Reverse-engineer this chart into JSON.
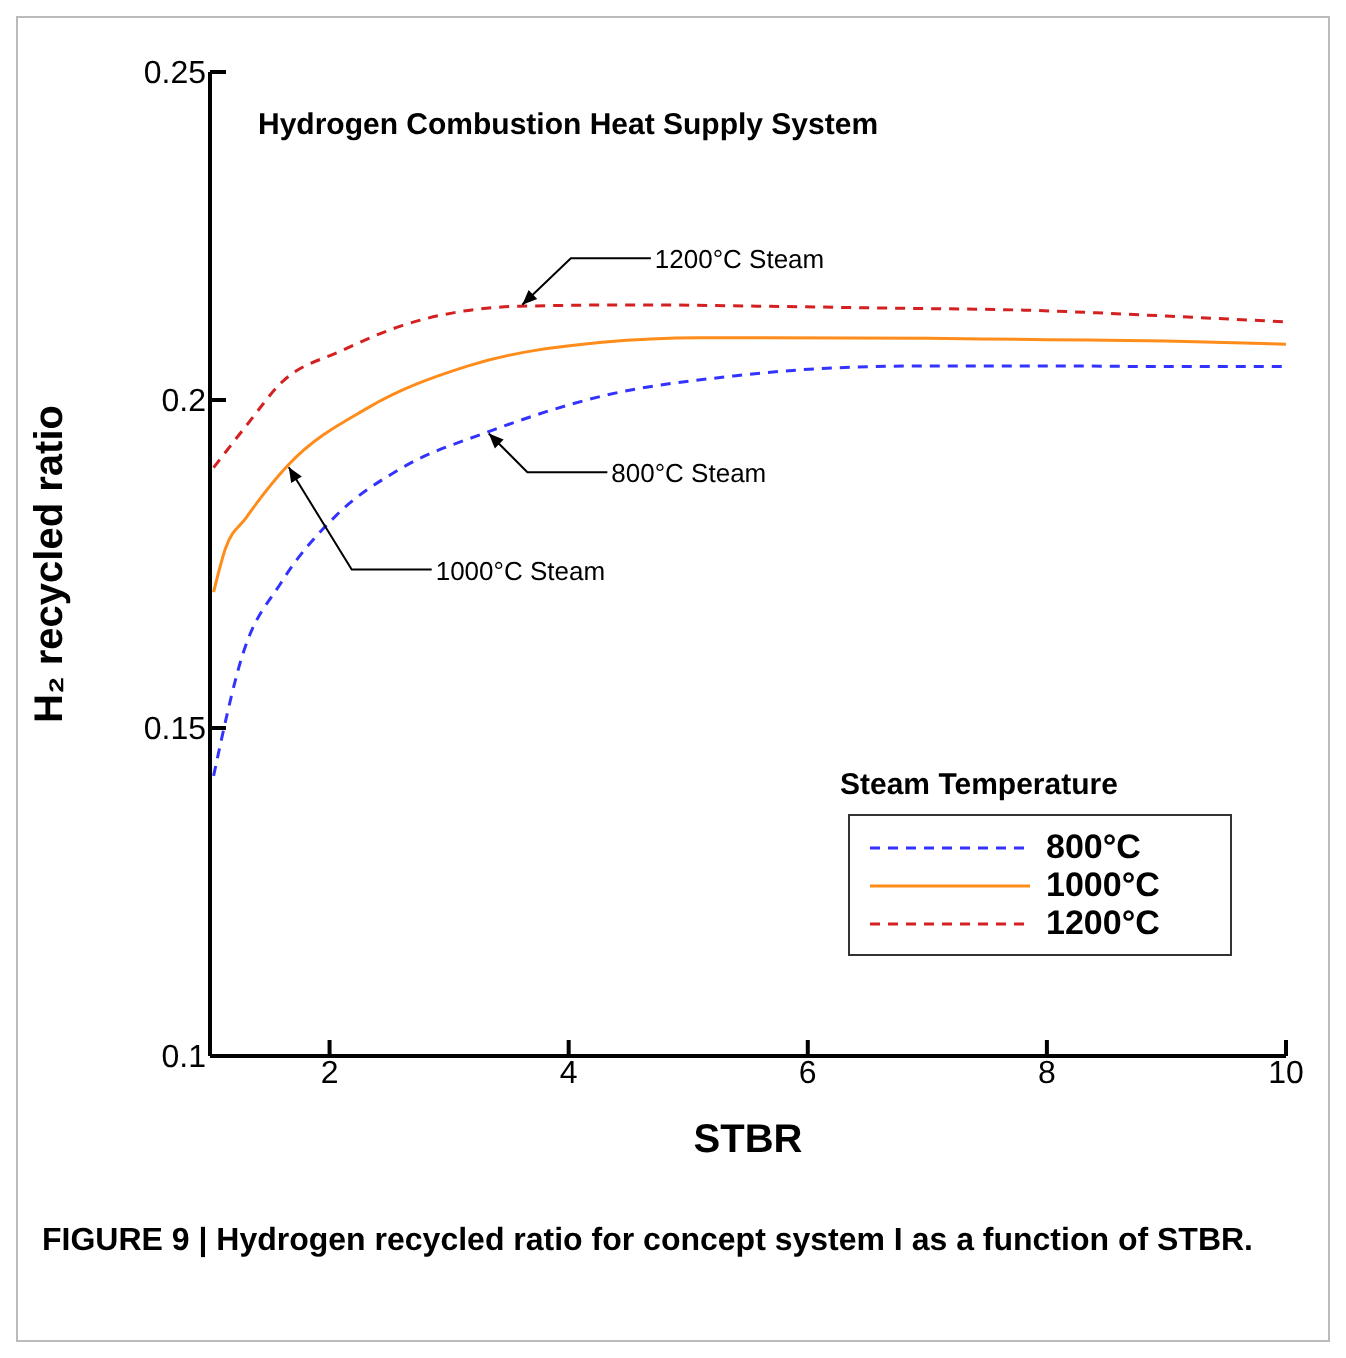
{
  "chart_data": {
    "type": "line",
    "title": "Hydrogen Combustion Heat Supply System",
    "xlabel": "STBR",
    "ylabel": "H₂ recycled ratio",
    "legend_title": "Steam Temperature",
    "legend": "right",
    "xlim": [
      1,
      10
    ],
    "xticks": [
      2,
      4,
      6,
      8,
      10
    ],
    "ylim": [
      0.1,
      0.25
    ],
    "yticks": [
      0.1,
      0.15,
      0.2,
      0.25
    ],
    "marker": "none",
    "series": [
      {
        "name": "800°C",
        "color": "#3333ff",
        "line_style": "dashed",
        "x": [
          1.03,
          1.27,
          1.6,
          2.05,
          2.6,
          3.32,
          4.28,
          5.4,
          6.23,
          7,
          8,
          9,
          10
        ],
        "values": [
          0.1427,
          0.161,
          0.1723,
          0.1823,
          0.1896,
          0.1951,
          0.2006,
          0.2037,
          0.2049,
          0.2052,
          0.2052,
          0.2051,
          0.2051
        ]
      },
      {
        "name": "1000°C",
        "color": "#ff8c1a",
        "line_style": "solid",
        "x": [
          1.03,
          1.13,
          1.3,
          1.65,
          2.32,
          3.16,
          4.28,
          5.1,
          5.6,
          7,
          8,
          9,
          10
        ],
        "values": [
          0.1707,
          0.1774,
          0.182,
          0.19,
          0.1988,
          0.2052,
          0.2088,
          0.2095,
          0.2095,
          0.2094,
          0.2092,
          0.209,
          0.2085
        ]
      },
      {
        "name": "1200°C",
        "color": "#d42020",
        "line_style": "dashed",
        "x": [
          1.03,
          1.3,
          1.6,
          2.1,
          2.6,
          3.6,
          4.6,
          5.6,
          6.7,
          7.8,
          9,
          10
        ],
        "values": [
          0.1897,
          0.196,
          0.2027,
          0.2075,
          0.2113,
          0.2143,
          0.2145,
          0.2143,
          0.214,
          0.2137,
          0.2128,
          0.2119
        ]
      }
    ],
    "annotations": [
      {
        "text": "1200°C Steam",
        "x": 3.6,
        "y": 0.2143
      },
      {
        "text": "800°C Steam",
        "x": 3.32,
        "y": 0.1951
      },
      {
        "text": "1000°C Steam",
        "x": 1.65,
        "y": 0.19
      },
      "FIGURE 9 | Hydrogen recycled ratio for concept system I as a function of STBR."
    ]
  }
}
